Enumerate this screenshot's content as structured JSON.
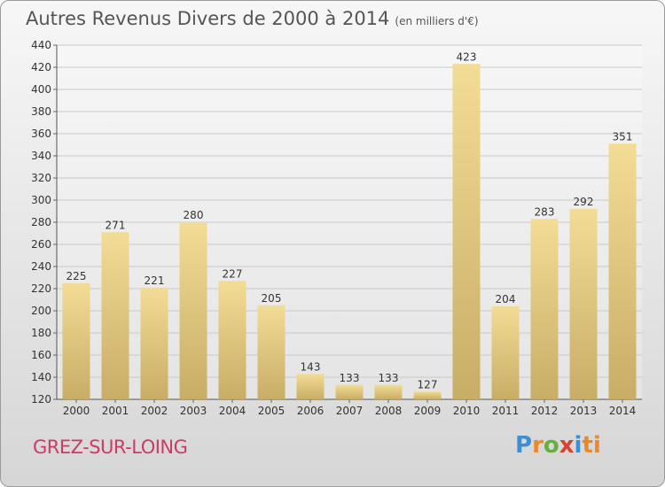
{
  "header": {
    "title": "Autres Revenus Divers de 2000 à 2014",
    "unit": "(en milliers d'€)"
  },
  "footer": {
    "city": "GREZ-SUR-LOING",
    "logo": "Proxiti"
  },
  "colors": {
    "bar_top": "#f3dc95",
    "bar_bottom": "#c8ad66",
    "city": "#cc3b67"
  },
  "chart_data": {
    "type": "bar",
    "categories": [
      "2000",
      "2001",
      "2002",
      "2003",
      "2004",
      "2005",
      "2006",
      "2007",
      "2008",
      "2009",
      "2010",
      "2011",
      "2012",
      "2013",
      "2014"
    ],
    "values": [
      225,
      271,
      221,
      280,
      227,
      205,
      143,
      133,
      133,
      127,
      423,
      204,
      283,
      292,
      351
    ],
    "ylim": [
      120,
      440
    ],
    "yticks": [
      120,
      140,
      160,
      180,
      200,
      220,
      240,
      260,
      280,
      300,
      320,
      340,
      360,
      380,
      400,
      420,
      440
    ],
    "grid": true
  }
}
